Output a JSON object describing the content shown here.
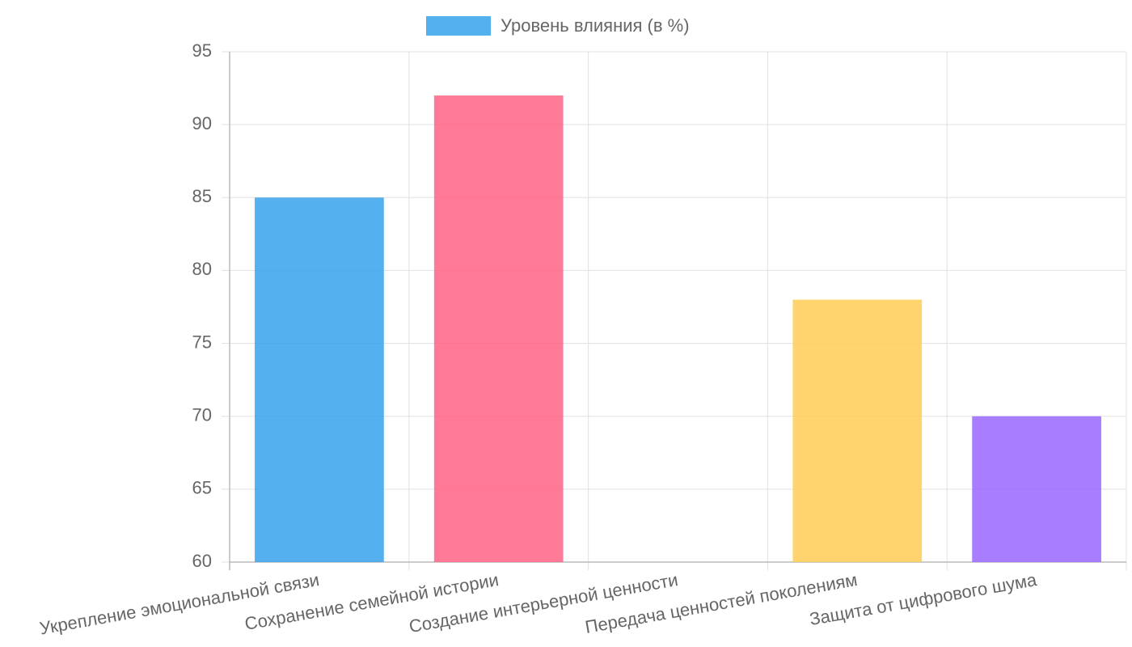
{
  "chart_data": {
    "type": "bar",
    "legend": "Уровень влияния (в %)",
    "categories": [
      "Укрепление эмоциональной связи",
      "Сохранение семейной истории",
      "Создание интерьерной ценности",
      "Передача ценностей поколениям",
      "Защита от цифрового шума"
    ],
    "values": [
      85,
      92,
      null,
      78,
      70
    ],
    "colors": [
      "#36a2eb",
      "#ff6384",
      null,
      "#ffcd56",
      "#9966ff"
    ],
    "ylim": [
      60,
      95
    ],
    "yticks": [
      60,
      65,
      70,
      75,
      80,
      85,
      90,
      95
    ],
    "grid": true
  }
}
